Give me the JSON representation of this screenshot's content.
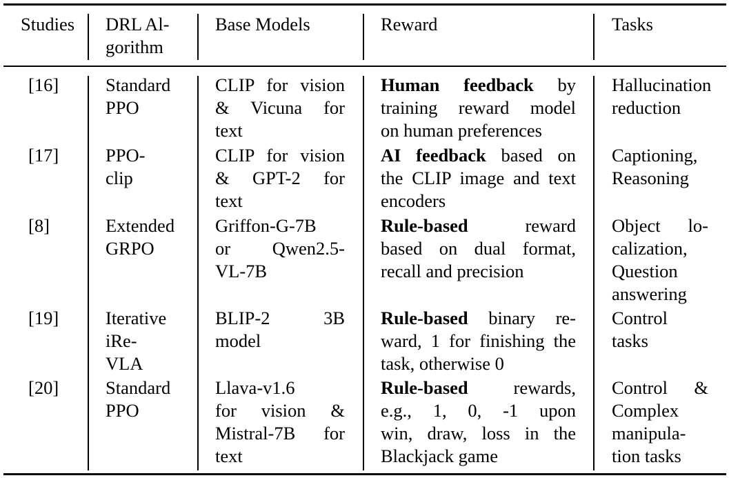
{
  "table": {
    "headers": {
      "studies": "Studies",
      "algorithm": [
        "DRL Al-",
        "gorithm"
      ],
      "base_models": "Base Models",
      "reward": "Reward",
      "tasks": "Tasks"
    },
    "rows": [
      {
        "study": "[16]",
        "algorithm": [
          "Standard",
          "PPO"
        ],
        "base_models": [
          "CLIP for vision",
          "& Vicuna for",
          "text"
        ],
        "reward": [
          {
            "bold": "Human feedback",
            "rest": " by"
          },
          {
            "bold": "",
            "rest": "training reward model"
          },
          {
            "bold": "",
            "rest": "on human preferences"
          }
        ],
        "tasks": [
          "Hallucination",
          "reduction"
        ]
      },
      {
        "study": "[17]",
        "algorithm": [
          "PPO-",
          "clip"
        ],
        "base_models": [
          "CLIP for vision",
          "& GPT-2 for",
          "text"
        ],
        "reward": [
          {
            "bold": "AI feedback",
            "rest": " based on"
          },
          {
            "bold": "",
            "rest": "the CLIP image and text"
          },
          {
            "bold": "",
            "rest": "encoders"
          }
        ],
        "tasks": [
          "Captioning,",
          "Reasoning"
        ]
      },
      {
        "study": "[8]",
        "algorithm": [
          "Extended",
          "GRPO"
        ],
        "base_models": [
          "Griffon-G-7B",
          "or Qwen2.5-",
          "VL-7B"
        ],
        "reward": [
          {
            "bold": "Rule-based",
            "rest": " reward"
          },
          {
            "bold": "",
            "rest": "based on dual format,"
          },
          {
            "bold": "",
            "rest": "recall and precision"
          }
        ],
        "tasks": [
          "Object lo-",
          "calization,",
          "Question",
          "answering"
        ]
      },
      {
        "study": "[19]",
        "algorithm": [
          "Iterative",
          "iRe-",
          "VLA"
        ],
        "base_models": [
          "BLIP-2 3B",
          "model"
        ],
        "reward": [
          {
            "bold": "Rule-based",
            "rest": " binary re-"
          },
          {
            "bold": "",
            "rest": "ward, 1 for finishing the"
          },
          {
            "bold": "",
            "rest": "task, otherwise 0"
          }
        ],
        "tasks": [
          "Control",
          "tasks"
        ]
      },
      {
        "study": "[20]",
        "algorithm": [
          "Standard",
          "PPO"
        ],
        "base_models": [
          "Llava-v1.6",
          "for vision &",
          "Mistral-7B for",
          "text"
        ],
        "reward": [
          {
            "bold": "Rule-based",
            "rest": " rewards,"
          },
          {
            "bold": "",
            "rest": "e.g., 1, 0, -1 upon"
          },
          {
            "bold": "",
            "rest": "win, draw, loss in the"
          },
          {
            "bold": "",
            "rest": "Blackjack game"
          }
        ],
        "tasks": [
          "Control &",
          "Complex",
          "manipula-",
          "tion tasks"
        ]
      }
    ]
  }
}
